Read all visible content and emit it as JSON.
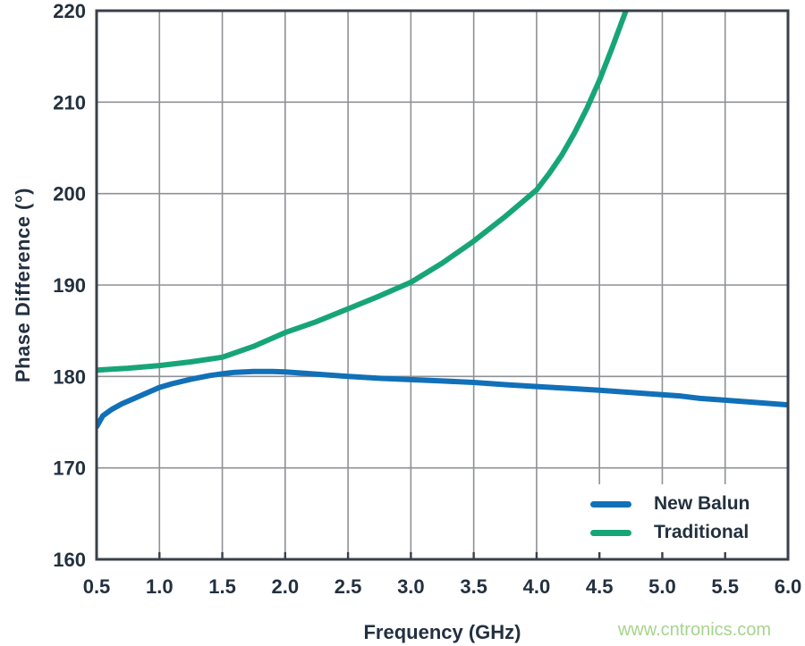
{
  "page": {
    "watermark": "www.cntronics.com",
    "watermark_color": "#a6d48e",
    "background": "#ffffff"
  },
  "chart_data": {
    "type": "line",
    "title": "",
    "xlabel": "Frequency (GHz)",
    "ylabel": "Phase Difference (°)",
    "xlim": [
      0.5,
      6.0
    ],
    "ylim": [
      160,
      220
    ],
    "grid": true,
    "legend_position": "bottom-right-inside",
    "axis_color": "#3a4049",
    "grid_color": "#8f9195",
    "text_color": "#23303f",
    "x_ticks": [
      0.5,
      1.0,
      1.5,
      2.0,
      2.5,
      3.0,
      3.5,
      4.0,
      4.5,
      5.0,
      5.5,
      6.0
    ],
    "x_tick_labels": [
      "0.5",
      "1.0",
      "1.5",
      "2.0",
      "2.5",
      "3.0",
      "3.5",
      "4.0",
      "4.5",
      "5.0",
      "5.5",
      "6.0"
    ],
    "y_ticks": [
      160,
      170,
      180,
      190,
      200,
      210,
      220
    ],
    "y_tick_labels": [
      "160",
      "170",
      "180",
      "190",
      "200",
      "210",
      "220"
    ],
    "series": [
      {
        "name": "New Balun",
        "color": "#1170b8",
        "x": [
          0.5,
          0.55,
          0.62,
          0.7,
          0.8,
          0.9,
          1.0,
          1.1,
          1.25,
          1.4,
          1.5,
          1.6,
          1.75,
          1.9,
          2.0,
          2.25,
          2.5,
          2.75,
          3.0,
          3.25,
          3.5,
          3.75,
          4.0,
          4.25,
          4.5,
          4.75,
          5.0,
          5.15,
          5.3,
          5.5,
          5.75,
          6.0
        ],
        "y": [
          174.5,
          175.7,
          176.4,
          177.0,
          177.6,
          178.2,
          178.8,
          179.2,
          179.7,
          180.1,
          180.3,
          180.45,
          180.55,
          180.55,
          180.5,
          180.25,
          180.0,
          179.8,
          179.65,
          179.5,
          179.35,
          179.1,
          178.9,
          178.7,
          178.5,
          178.25,
          178.0,
          177.85,
          177.6,
          177.4,
          177.15,
          176.9
        ]
      },
      {
        "name": "Traditional",
        "color": "#17a578",
        "x": [
          0.5,
          0.75,
          1.0,
          1.25,
          1.5,
          1.75,
          2.0,
          2.25,
          2.5,
          2.75,
          3.0,
          3.25,
          3.5,
          3.75,
          4.0,
          4.1,
          4.2,
          4.3,
          4.4,
          4.5,
          4.6,
          4.7,
          4.78
        ],
        "y": [
          180.7,
          180.9,
          181.2,
          181.6,
          182.1,
          183.3,
          184.8,
          186.0,
          187.4,
          188.8,
          190.3,
          192.4,
          194.8,
          197.5,
          200.4,
          202.2,
          204.2,
          206.6,
          209.3,
          212.4,
          215.9,
          219.6,
          222.5
        ]
      }
    ]
  }
}
